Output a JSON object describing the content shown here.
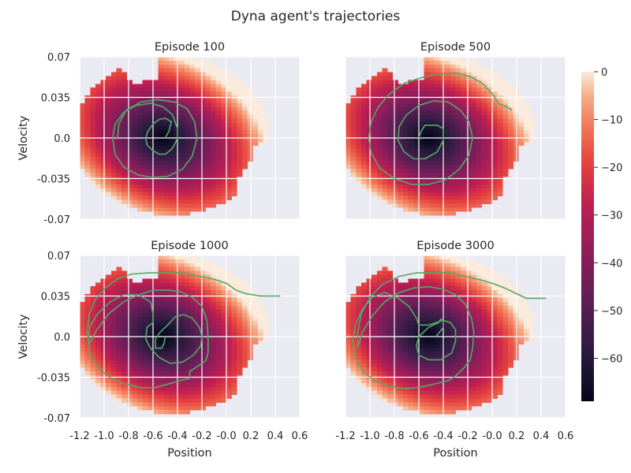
{
  "figure": {
    "title": "Dyna agent's trajectories"
  },
  "chart_data": {
    "type": "heatmap",
    "xlabel": "Position",
    "ylabel": "Velocity",
    "xlim": [
      -1.2,
      0.6
    ],
    "ylim": [
      -0.07,
      0.07
    ],
    "x_ticks": [
      "-1.2",
      "-1.0",
      "-0.8",
      "-0.6",
      "-0.4",
      "-0.2",
      "-0.0",
      "0.2",
      "0.4",
      "0.6"
    ],
    "y_ticks": [
      "0.07",
      "0.035",
      "0.0",
      "-0.035",
      "-0.07"
    ],
    "grid": true,
    "colorbar": {
      "ticks": [
        "0",
        "−10",
        "−20",
        "−30",
        "−40",
        "−50",
        "−60"
      ],
      "range": [
        -69,
        0
      ],
      "colormap": "rocket"
    },
    "trajectory_color": "#55a868",
    "panels": [
      {
        "title": "Episode 100",
        "trajectory": [
          [
            -0.5,
            0.0
          ],
          [
            -0.47,
            0.006
          ],
          [
            -0.45,
            0.014
          ],
          [
            -0.5,
            0.017
          ],
          [
            -0.55,
            0.016
          ],
          [
            -0.6,
            0.012
          ],
          [
            -0.64,
            0.006
          ],
          [
            -0.66,
            0.0
          ],
          [
            -0.65,
            -0.006
          ],
          [
            -0.6,
            -0.011
          ],
          [
            -0.55,
            -0.014
          ],
          [
            -0.5,
            -0.014
          ],
          [
            -0.45,
            -0.01
          ],
          [
            -0.42,
            -0.005
          ],
          [
            -0.4,
            0.0
          ],
          [
            -0.4,
            0.008
          ],
          [
            -0.44,
            0.02
          ],
          [
            -0.52,
            0.027
          ],
          [
            -0.62,
            0.03
          ],
          [
            -0.74,
            0.028
          ],
          [
            -0.84,
            0.022
          ],
          [
            -0.91,
            0.012
          ],
          [
            -0.93,
            0.0
          ],
          [
            -0.91,
            -0.014
          ],
          [
            -0.84,
            -0.025
          ],
          [
            -0.72,
            -0.032
          ],
          [
            -0.6,
            -0.034
          ],
          [
            -0.48,
            -0.033
          ],
          [
            -0.36,
            -0.027
          ],
          [
            -0.28,
            -0.016
          ],
          [
            -0.24,
            0.0
          ],
          [
            -0.26,
            0.014
          ],
          [
            -0.32,
            0.025
          ],
          [
            -0.42,
            0.031
          ],
          [
            -0.56,
            0.033
          ],
          [
            -0.7,
            0.031
          ],
          [
            -0.82,
            0.024
          ],
          [
            -0.88,
            0.012
          ],
          [
            -0.89,
            0.0
          ]
        ]
      },
      {
        "title": "Episode 500",
        "trajectory": [
          [
            -0.6,
            0.0
          ],
          [
            -0.58,
            0.006
          ],
          [
            -0.55,
            0.011
          ],
          [
            -0.45,
            0.011
          ],
          [
            -0.4,
            0.008
          ],
          [
            -0.4,
            -0.002
          ],
          [
            -0.45,
            -0.012
          ],
          [
            -0.55,
            -0.018
          ],
          [
            -0.64,
            -0.018
          ],
          [
            -0.72,
            -0.012
          ],
          [
            -0.77,
            -0.002
          ],
          [
            -0.76,
            0.01
          ],
          [
            -0.7,
            0.02
          ],
          [
            -0.6,
            0.028
          ],
          [
            -0.48,
            0.032
          ],
          [
            -0.36,
            0.031
          ],
          [
            -0.26,
            0.024
          ],
          [
            -0.19,
            0.014
          ],
          [
            -0.16,
            0.0
          ],
          [
            -0.19,
            -0.015
          ],
          [
            -0.27,
            -0.027
          ],
          [
            -0.38,
            -0.036
          ],
          [
            -0.52,
            -0.04
          ],
          [
            -0.66,
            -0.04
          ],
          [
            -0.8,
            -0.035
          ],
          [
            -0.92,
            -0.026
          ],
          [
            -0.99,
            -0.013
          ],
          [
            -1.01,
            0.0
          ],
          [
            -0.99,
            0.014
          ],
          [
            -0.93,
            0.027
          ],
          [
            -0.84,
            0.038
          ],
          [
            -0.72,
            0.047
          ],
          [
            -0.58,
            0.052
          ],
          [
            -0.44,
            0.055
          ],
          [
            -0.3,
            0.056
          ],
          [
            -0.18,
            0.053
          ],
          [
            -0.08,
            0.047
          ],
          [
            0.0,
            0.038
          ],
          [
            0.06,
            0.029
          ],
          [
            0.12,
            0.027
          ],
          [
            0.16,
            0.024
          ]
        ]
      },
      {
        "title": "Episode 1000",
        "trajectory": [
          [
            -0.5,
            0.0
          ],
          [
            -0.51,
            -0.006
          ],
          [
            -0.53,
            -0.01
          ],
          [
            -0.58,
            -0.01
          ],
          [
            -0.58,
            -0.002
          ],
          [
            -0.54,
            0.004
          ],
          [
            -0.48,
            0.01
          ],
          [
            -0.42,
            0.017
          ],
          [
            -0.35,
            0.019
          ],
          [
            -0.28,
            0.016
          ],
          [
            -0.22,
            0.008
          ],
          [
            -0.2,
            0.0
          ],
          [
            -0.21,
            -0.008
          ],
          [
            -0.27,
            -0.016
          ],
          [
            -0.36,
            -0.022
          ],
          [
            -0.46,
            -0.023
          ],
          [
            -0.55,
            -0.018
          ],
          [
            -0.62,
            -0.01
          ],
          [
            -0.66,
            -0.002
          ],
          [
            -0.65,
            0.008
          ],
          [
            -0.6,
            0.012
          ],
          [
            -0.6,
            0.02
          ],
          [
            -0.62,
            0.03
          ],
          [
            -0.72,
            0.036
          ],
          [
            -0.84,
            0.036
          ],
          [
            -0.95,
            0.03
          ],
          [
            -1.05,
            0.02
          ],
          [
            -1.12,
            0.008
          ],
          [
            -1.13,
            -0.006
          ],
          [
            -1.1,
            -0.018
          ],
          [
            -1.04,
            -0.028
          ],
          [
            -0.94,
            -0.036
          ],
          [
            -0.82,
            -0.041
          ],
          [
            -0.7,
            -0.044
          ],
          [
            -0.58,
            -0.044
          ],
          [
            -0.48,
            -0.041
          ],
          [
            -0.38,
            -0.038
          ],
          [
            -0.3,
            -0.036
          ],
          [
            -0.3,
            -0.03
          ],
          [
            -0.24,
            -0.026
          ],
          [
            -0.17,
            -0.021
          ],
          [
            -0.15,
            -0.014
          ],
          [
            -0.15,
            0.0
          ],
          [
            -0.16,
            0.014
          ],
          [
            -0.2,
            0.026
          ],
          [
            -0.28,
            0.034
          ],
          [
            -0.38,
            0.039
          ],
          [
            -0.48,
            0.04
          ],
          [
            -0.6,
            0.04
          ],
          [
            -0.72,
            0.036
          ],
          [
            -0.84,
            0.03
          ],
          [
            -0.96,
            0.02
          ],
          [
            -1.06,
            0.006
          ],
          [
            -1.12,
            -0.006
          ],
          [
            -1.14,
            0.004
          ],
          [
            -1.12,
            0.02
          ],
          [
            -1.07,
            0.032
          ],
          [
            -0.99,
            0.042
          ],
          [
            -0.89,
            0.05
          ],
          [
            -0.77,
            0.054
          ],
          [
            -0.63,
            0.055
          ],
          [
            -0.49,
            0.055
          ],
          [
            -0.35,
            0.055
          ],
          [
            -0.22,
            0.052
          ],
          [
            -0.12,
            0.05
          ],
          [
            0.0,
            0.046
          ],
          [
            0.08,
            0.04
          ],
          [
            0.16,
            0.037
          ],
          [
            0.28,
            0.035
          ],
          [
            0.44,
            0.035
          ]
        ]
      },
      {
        "title": "Episode 3000",
        "trajectory": [
          [
            -0.46,
            0.0
          ],
          [
            -0.4,
            0.008
          ],
          [
            -0.4,
            0.014
          ],
          [
            -0.42,
            0.015
          ],
          [
            -0.44,
            0.012
          ],
          [
            -0.52,
            0.008
          ],
          [
            -0.6,
            0.0
          ],
          [
            -0.62,
            -0.008
          ],
          [
            -0.6,
            -0.016
          ],
          [
            -0.52,
            -0.02
          ],
          [
            -0.42,
            -0.02
          ],
          [
            -0.33,
            -0.014
          ],
          [
            -0.3,
            -0.004
          ],
          [
            -0.3,
            0.006
          ],
          [
            -0.34,
            0.012
          ],
          [
            -0.4,
            0.014
          ],
          [
            -0.46,
            0.012
          ],
          [
            -0.52,
            0.01
          ],
          [
            -0.6,
            0.01
          ],
          [
            -0.62,
            0.016
          ],
          [
            -0.68,
            0.026
          ],
          [
            -0.78,
            0.034
          ],
          [
            -0.88,
            0.038
          ],
          [
            -0.98,
            0.034
          ],
          [
            -1.06,
            0.024
          ],
          [
            -1.12,
            0.01
          ],
          [
            -1.14,
            -0.004
          ],
          [
            -1.12,
            -0.018
          ],
          [
            -1.06,
            -0.03
          ],
          [
            -0.96,
            -0.038
          ],
          [
            -0.84,
            -0.043
          ],
          [
            -0.7,
            -0.045
          ],
          [
            -0.56,
            -0.043
          ],
          [
            -0.44,
            -0.04
          ],
          [
            -0.36,
            -0.038
          ],
          [
            -0.3,
            -0.034
          ],
          [
            -0.24,
            -0.028
          ],
          [
            -0.18,
            -0.02
          ],
          [
            -0.16,
            -0.01
          ],
          [
            -0.15,
            0.004
          ],
          [
            -0.17,
            0.016
          ],
          [
            -0.22,
            0.028
          ],
          [
            -0.3,
            0.036
          ],
          [
            -0.4,
            0.041
          ],
          [
            -0.52,
            0.043
          ],
          [
            -0.64,
            0.042
          ],
          [
            -0.76,
            0.038
          ],
          [
            -0.88,
            0.03
          ],
          [
            -0.98,
            0.018
          ],
          [
            -1.06,
            0.004
          ],
          [
            -1.1,
            -0.01
          ],
          [
            -1.1,
            0.004
          ],
          [
            -1.07,
            0.02
          ],
          [
            -1.0,
            0.034
          ],
          [
            -0.9,
            0.045
          ],
          [
            -0.76,
            0.052
          ],
          [
            -0.62,
            0.055
          ],
          [
            -0.48,
            0.055
          ],
          [
            -0.34,
            0.055
          ],
          [
            -0.22,
            0.052
          ],
          [
            -0.1,
            0.049
          ],
          [
            0.0,
            0.046
          ],
          [
            0.1,
            0.042
          ],
          [
            0.2,
            0.037
          ],
          [
            0.28,
            0.033
          ],
          [
            0.44,
            0.033
          ]
        ]
      }
    ]
  }
}
